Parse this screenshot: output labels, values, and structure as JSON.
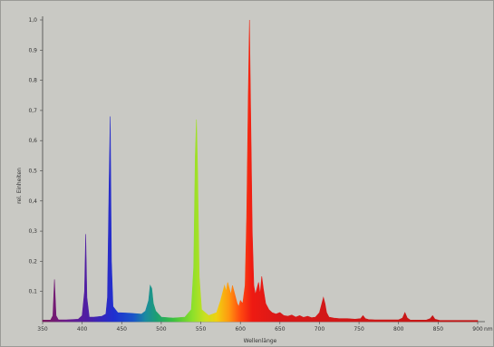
{
  "chart_data": {
    "type": "area",
    "title": "",
    "xlabel": "Wellenlänge",
    "ylabel": "rel. Einheiten",
    "x_unit": "nm",
    "xlim": [
      350,
      900
    ],
    "ylim": [
      0,
      1.0
    ],
    "x_ticks": [
      "350",
      "400",
      "450",
      "500",
      "550",
      "600",
      "650",
      "700",
      "750",
      "800",
      "850",
      "900"
    ],
    "y_ticks": [
      "0,1",
      "0,2",
      "0,3",
      "0,4",
      "0,5",
      "0,6",
      "0,7",
      "0,8",
      "0,9",
      "1,0"
    ],
    "grid": false,
    "background_color": "#c9c9c4",
    "series": [
      {
        "x": [
          350,
          360,
          363,
          365,
          367,
          370,
          380,
          395,
          400,
          403,
          404.5,
          406,
          409,
          415,
          425,
          430,
          432,
          434,
          435.5,
          437,
          439,
          445,
          460,
          475,
          480,
          484,
          486,
          488,
          490,
          493,
          500,
          515,
          530,
          538,
          541,
          543,
          544.5,
          546,
          548,
          551,
          560,
          570,
          575,
          578,
          580,
          582,
          584,
          586,
          588,
          590,
          592,
          594,
          596,
          598,
          600,
          603,
          606,
          608,
          610,
          611.5,
          613,
          615,
          617,
          619,
          621,
          623,
          625,
          627,
          629,
          632,
          636,
          640,
          645,
          650,
          655,
          660,
          665,
          670,
          675,
          680,
          685,
          690,
          695,
          700,
          703,
          705,
          707,
          709,
          712,
          718,
          725,
          735,
          745,
          752,
          755,
          758,
          762,
          770,
          780,
          790,
          800,
          805,
          808,
          811,
          815,
          825,
          835,
          840,
          843,
          846,
          852,
          865,
          880,
          890,
          900
        ],
        "y": [
          0.005,
          0.005,
          0.02,
          0.14,
          0.02,
          0.006,
          0.006,
          0.008,
          0.02,
          0.1,
          0.29,
          0.08,
          0.015,
          0.015,
          0.018,
          0.025,
          0.08,
          0.45,
          0.68,
          0.2,
          0.05,
          0.03,
          0.028,
          0.025,
          0.035,
          0.07,
          0.12,
          0.11,
          0.06,
          0.035,
          0.015,
          0.012,
          0.015,
          0.04,
          0.18,
          0.55,
          0.67,
          0.5,
          0.15,
          0.04,
          0.02,
          0.03,
          0.07,
          0.1,
          0.12,
          0.1,
          0.13,
          0.11,
          0.09,
          0.12,
          0.1,
          0.08,
          0.06,
          0.05,
          0.07,
          0.06,
          0.12,
          0.35,
          0.75,
          1.0,
          0.7,
          0.3,
          0.12,
          0.09,
          0.11,
          0.13,
          0.09,
          0.15,
          0.11,
          0.06,
          0.04,
          0.03,
          0.025,
          0.03,
          0.02,
          0.018,
          0.022,
          0.015,
          0.02,
          0.014,
          0.018,
          0.013,
          0.015,
          0.03,
          0.06,
          0.08,
          0.06,
          0.03,
          0.015,
          0.012,
          0.01,
          0.01,
          0.008,
          0.01,
          0.02,
          0.01,
          0.007,
          0.006,
          0.006,
          0.006,
          0.006,
          0.012,
          0.03,
          0.012,
          0.005,
          0.005,
          0.005,
          0.01,
          0.02,
          0.008,
          0.004,
          0.004,
          0.004,
          0.004,
          0.004
        ]
      }
    ]
  }
}
